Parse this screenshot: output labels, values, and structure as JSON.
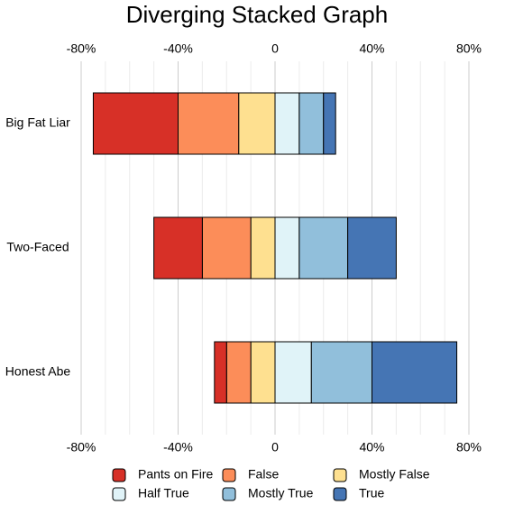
{
  "chart_data": {
    "type": "diverging_stacked_bar",
    "title": "Diverging Stacked Graph",
    "categories": [
      "Big Fat Liar",
      "Two-Faced",
      "Honest Abe"
    ],
    "series": [
      {
        "name": "Pants on Fire",
        "color": "#d73027",
        "values": [
          -35,
          -20,
          -5
        ]
      },
      {
        "name": "False",
        "color": "#fc8d59",
        "values": [
          -25,
          -20,
          -10
        ]
      },
      {
        "name": "Mostly False",
        "color": "#fee090",
        "values": [
          -15,
          -10,
          -10
        ]
      },
      {
        "name": "Half True",
        "color": "#e0f3f8",
        "values": [
          10,
          10,
          15
        ]
      },
      {
        "name": "Mostly True",
        "color": "#91bfdb",
        "values": [
          10,
          20,
          25
        ]
      },
      {
        "name": "True",
        "color": "#4575b4",
        "values": [
          5,
          20,
          35
        ]
      }
    ],
    "xlim": [
      -80,
      80
    ],
    "xticks": [
      {
        "value": -80,
        "label": "-80%"
      },
      {
        "value": -40,
        "label": "-40%"
      },
      0,
      {
        "value": 40,
        "label": "40%"
      },
      {
        "value": 80,
        "label": "80%"
      }
    ],
    "xticks_minor": [
      -70,
      -60,
      -50,
      -30,
      -20,
      -10,
      10,
      20,
      30,
      50,
      60,
      70
    ],
    "grid": true
  }
}
